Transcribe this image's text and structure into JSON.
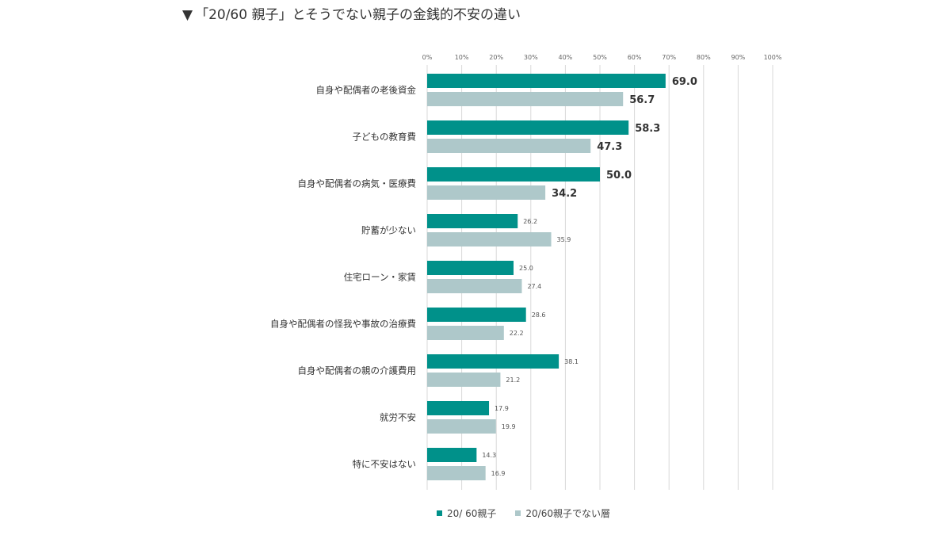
{
  "chart_data": {
    "type": "bar",
    "orientation": "horizontal",
    "title": "「20/60 親子」とそうでない親子の金銭的不安の違い",
    "title_marker": "▼",
    "x_ticks": [
      "0%",
      "10%",
      "20%",
      "30%",
      "40%",
      "50%",
      "60%",
      "70%",
      "80%",
      "90%",
      "100%"
    ],
    "xlim": [
      0,
      100
    ],
    "grid": true,
    "legend_position": "bottom",
    "categories": [
      "自身や配偶者の老後資金",
      "子どもの教育費",
      "自身や配偶者の病気・医療費",
      "貯蓄が少ない",
      "住宅ローン・家賃",
      "自身や配偶者の怪我や事故の治療費",
      "自身や配偶者の親の介護費用",
      "就労不安",
      "特に不安はない"
    ],
    "series": [
      {
        "name": "20/ 60親子",
        "color": "#00918a",
        "values": [
          69.0,
          58.3,
          50.0,
          26.2,
          25.0,
          28.6,
          38.1,
          17.9,
          14.3
        ],
        "labels": [
          "69.0",
          "58.3",
          "50.0",
          "26.2",
          "25.0",
          "28.6",
          "38.1",
          "17.9",
          "14.3"
        ]
      },
      {
        "name": "20/60親子でない層",
        "color": "#aec8ca",
        "values": [
          56.7,
          47.3,
          34.2,
          35.9,
          27.4,
          22.2,
          21.2,
          19.9,
          16.9
        ],
        "labels": [
          "56.7",
          "47.3",
          "34.2",
          "35.9",
          "27.4",
          "22.2",
          "21.2",
          "19.9",
          "16.9"
        ]
      }
    ],
    "emphasized_categories": 3
  }
}
